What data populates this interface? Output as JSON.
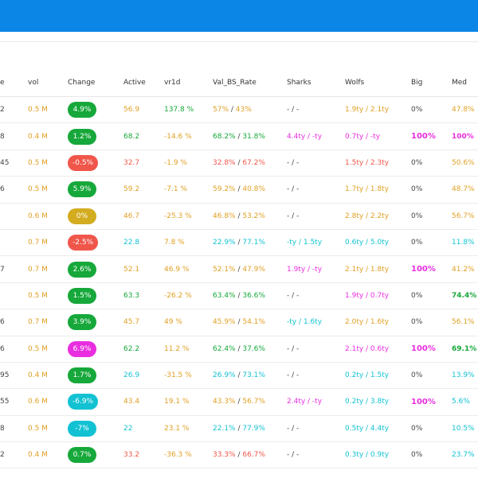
{
  "colors": {
    "topbar": "#0b86e6",
    "orange": "#e0a024",
    "green": "#16a83a",
    "red": "#f0564a",
    "cyan": "#12c2d2",
    "magenta": "#e92ee0",
    "yellow_pill": "#d3ac20"
  },
  "table": {
    "headers": [
      "e",
      "vol",
      "Change",
      "Active",
      "vr1d",
      "Val_BS_Rate",
      "Sharks",
      "Wolfs",
      "Big",
      "Med"
    ],
    "rows": [
      {
        "c0": "2",
        "vol": "0.5 M",
        "change": "4.9%",
        "change_color": "green",
        "active": "56.9",
        "active_color": "orange",
        "vr1d": "137.8 %",
        "vr1d_color": "green",
        "val_a": "57%",
        "val_b": "43%",
        "val_color": "orange",
        "sharks": "- / -",
        "sharks_color": "dark",
        "wolfs": "1.9ty / 2.1ty",
        "wolfs_color": "orange",
        "big": "0%",
        "big_color": "dark",
        "med": "47.8%",
        "med_color": "orange"
      },
      {
        "c0": "8",
        "vol": "0.4 M",
        "change": "1.2%",
        "change_color": "green",
        "active": "68.2",
        "active_color": "green",
        "vr1d": "-14.6 %",
        "vr1d_color": "orange",
        "val_a": "68.2%",
        "val_b": "31.8%",
        "val_color": "green",
        "sharks": "4.4ty / -ty",
        "sharks_color": "magenta",
        "wolfs": "0.7ty / -ty",
        "wolfs_color": "magenta",
        "big": "100%",
        "big_color": "magenta",
        "med": "100%",
        "med_color": "magenta"
      },
      {
        "c0": "45",
        "vol": "0.5 M",
        "change": "-0.5%",
        "change_color": "red",
        "active": "32.7",
        "active_color": "red",
        "vr1d": "-1.9 %",
        "vr1d_color": "orange",
        "val_a": "32.8%",
        "val_b": "67.2%",
        "val_color": "red",
        "sharks": "- / -",
        "sharks_color": "dark",
        "wolfs": "1.5ty / 2.3ty",
        "wolfs_color": "red",
        "big": "0%",
        "big_color": "dark",
        "med": "50.6%",
        "med_color": "orange"
      },
      {
        "c0": "6",
        "vol": "0.5 M",
        "change": "5.9%",
        "change_color": "green",
        "active": "59.2",
        "active_color": "orange",
        "vr1d": "-7.1 %",
        "vr1d_color": "orange",
        "val_a": "59.2%",
        "val_b": "40.8%",
        "val_color": "orange",
        "sharks": "- / -",
        "sharks_color": "dark",
        "wolfs": "1.7ty / 1.8ty",
        "wolfs_color": "orange",
        "big": "0%",
        "big_color": "dark",
        "med": "48.7%",
        "med_color": "orange"
      },
      {
        "c0": "",
        "vol": "0.6 M",
        "change": "0%",
        "change_color": "yellow",
        "active": "46.7",
        "active_color": "orange",
        "vr1d": "-25.3 %",
        "vr1d_color": "orange",
        "val_a": "46.8%",
        "val_b": "53.2%",
        "val_color": "orange",
        "sharks": "- / -",
        "sharks_color": "dark",
        "wolfs": "2.8ty / 2.2ty",
        "wolfs_color": "orange",
        "big": "0%",
        "big_color": "dark",
        "med": "56.7%",
        "med_color": "orange"
      },
      {
        "c0": "",
        "vol": "0.7 M",
        "change": "-2.5%",
        "change_color": "red",
        "active": "22.8",
        "active_color": "cyan",
        "vr1d": "7.8 %",
        "vr1d_color": "orange",
        "val_a": "22.9%",
        "val_b": "77.1%",
        "val_color": "cyan",
        "sharks": "-ty / 1.5ty",
        "sharks_color": "cyan",
        "wolfs": "0.6ty / 5.0ty",
        "wolfs_color": "cyan",
        "big": "0%",
        "big_color": "dark",
        "med": "11.8%",
        "med_color": "cyan"
      },
      {
        "c0": "7",
        "vol": "0.7 M",
        "change": "2.6%",
        "change_color": "green",
        "active": "52.1",
        "active_color": "orange",
        "vr1d": "46.9 %",
        "vr1d_color": "orange",
        "val_a": "52.1%",
        "val_b": "47.9%",
        "val_color": "orange",
        "sharks": "1.9ty / -ty",
        "sharks_color": "magenta",
        "wolfs": "2.1ty / 1.8ty",
        "wolfs_color": "orange",
        "big": "100%",
        "big_color": "magenta",
        "med": "41.2%",
        "med_color": "orange"
      },
      {
        "c0": "",
        "vol": "0.5 M",
        "change": "1.5%",
        "change_color": "green",
        "active": "63.3",
        "active_color": "green",
        "vr1d": "-26.2 %",
        "vr1d_color": "orange",
        "val_a": "63.4%",
        "val_b": "36.6%",
        "val_color": "green",
        "sharks": "- / -",
        "sharks_color": "dark",
        "wolfs": "1.9ty / 0.7ty",
        "wolfs_color": "magenta",
        "big": "0%",
        "big_color": "dark",
        "med": "74.4%",
        "med_color": "green"
      },
      {
        "c0": "6",
        "vol": "0.7 M",
        "change": "3.9%",
        "change_color": "green",
        "active": "45.7",
        "active_color": "orange",
        "vr1d": "49 %",
        "vr1d_color": "orange",
        "val_a": "45.9%",
        "val_b": "54.1%",
        "val_color": "orange",
        "sharks": "-ty / 1.6ty",
        "sharks_color": "cyan",
        "wolfs": "2.0ty / 1.6ty",
        "wolfs_color": "orange",
        "big": "0%",
        "big_color": "dark",
        "med": "56.1%",
        "med_color": "orange"
      },
      {
        "c0": "6",
        "vol": "0.5 M",
        "change": "6.9%",
        "change_color": "magenta",
        "active": "62.2",
        "active_color": "green",
        "vr1d": "11.2 %",
        "vr1d_color": "orange",
        "val_a": "62.4%",
        "val_b": "37.6%",
        "val_color": "green",
        "sharks": "- / -",
        "sharks_color": "dark",
        "wolfs": "2.1ty / 0.6ty",
        "wolfs_color": "magenta",
        "big": "100%",
        "big_color": "magenta",
        "med": "69.1%",
        "med_color": "green"
      },
      {
        "c0": "95",
        "vol": "0.4 M",
        "change": "1.7%",
        "change_color": "green",
        "active": "26.9",
        "active_color": "cyan",
        "vr1d": "-31.5 %",
        "vr1d_color": "orange",
        "val_a": "26.9%",
        "val_b": "73.1%",
        "val_color": "cyan",
        "sharks": "- / -",
        "sharks_color": "dark",
        "wolfs": "0.2ty / 1.5ty",
        "wolfs_color": "cyan",
        "big": "0%",
        "big_color": "dark",
        "med": "13.9%",
        "med_color": "cyan"
      },
      {
        "c0": "55",
        "vol": "0.6 M",
        "change": "-6.9%",
        "change_color": "cyan",
        "active": "43.4",
        "active_color": "orange",
        "vr1d": "19.1 %",
        "vr1d_color": "orange",
        "val_a": "43.3%",
        "val_b": "56.7%",
        "val_color": "orange",
        "sharks": "2.4ty / -ty",
        "sharks_color": "magenta",
        "wolfs": "0.2ty / 3.8ty",
        "wolfs_color": "cyan",
        "big": "100%",
        "big_color": "magenta",
        "med": "5.6%",
        "med_color": "cyan"
      },
      {
        "c0": "8",
        "vol": "0.5 M",
        "change": "-7%",
        "change_color": "cyan",
        "active": "22",
        "active_color": "cyan",
        "vr1d": "23.1 %",
        "vr1d_color": "orange",
        "val_a": "22.1%",
        "val_b": "77.9%",
        "val_color": "cyan",
        "sharks": "- / -",
        "sharks_color": "dark",
        "wolfs": "0.5ty / 4.4ty",
        "wolfs_color": "cyan",
        "big": "0%",
        "big_color": "dark",
        "med": "10.5%",
        "med_color": "cyan"
      },
      {
        "c0": "2",
        "vol": "0.4 M",
        "change": "0.7%",
        "change_color": "green",
        "active": "33.2",
        "active_color": "red",
        "vr1d": "-36.3 %",
        "vr1d_color": "orange",
        "val_a": "33.3%",
        "val_b": "66.7%",
        "val_color": "red",
        "sharks": "- / -",
        "sharks_color": "dark",
        "wolfs": "0.3ty / 0.9ty",
        "wolfs_color": "cyan",
        "big": "0%",
        "big_color": "dark",
        "med": "23.7%",
        "med_color": "cyan"
      }
    ]
  }
}
